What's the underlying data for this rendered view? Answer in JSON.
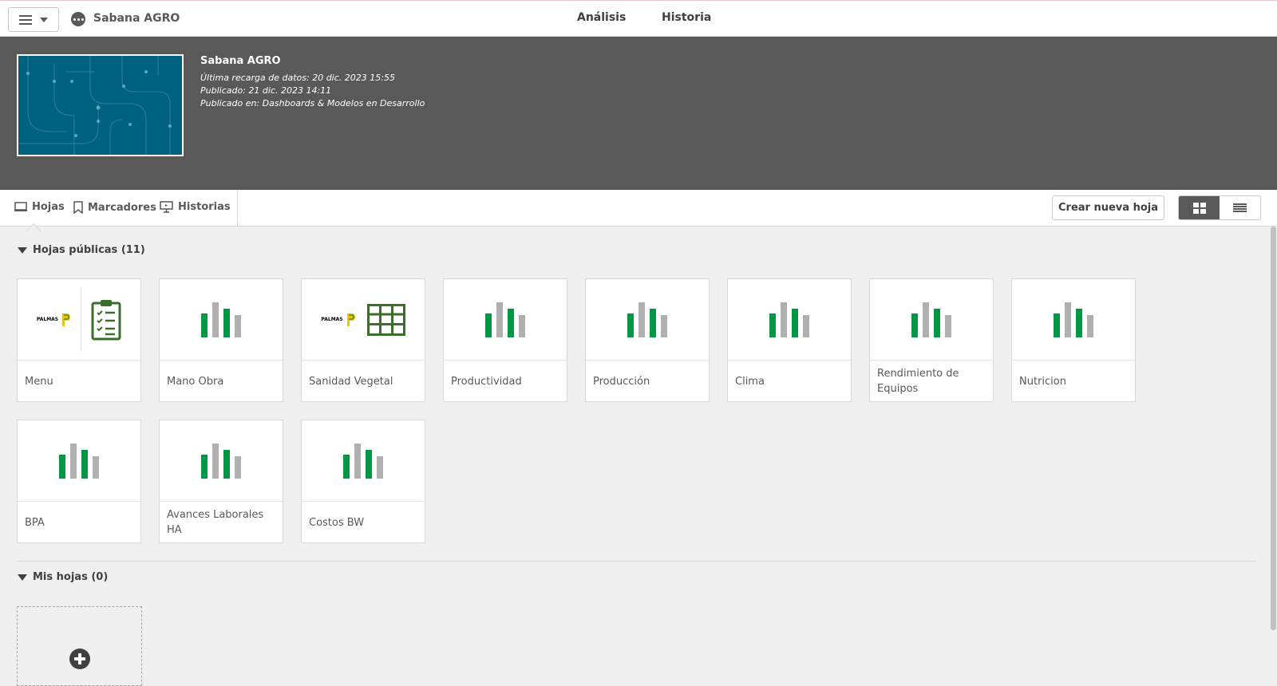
{
  "topbar": {
    "app_name": "Sabana AGRO",
    "nav": [
      "Análisis",
      "Historia"
    ]
  },
  "hero": {
    "title": "Sabana AGRO",
    "last_reload": "Última recarga de datos: 20 dic. 2023 15:55",
    "published": "Publicado: 21 dic. 2023 14:11",
    "published_in": "Publicado en: Dashboards & Modelos en Desarrollo"
  },
  "tabs": {
    "sheets": "Hojas",
    "bookmarks": "Marcadores",
    "stories": "Historias"
  },
  "toolbar": {
    "create_sheet": "Crear nueva hoja"
  },
  "public_sheets": {
    "heading": "Hojas públicas (11)",
    "items": [
      {
        "title": "Menu",
        "thumb": "palmas-clipboard"
      },
      {
        "title": "Mano Obra",
        "thumb": "bar-chart"
      },
      {
        "title": "Sanidad Vegetal",
        "thumb": "palmas-table"
      },
      {
        "title": "Productividad",
        "thumb": "bar-chart"
      },
      {
        "title": "Producción",
        "thumb": "bar-chart"
      },
      {
        "title": "Clima",
        "thumb": "bar-chart"
      },
      {
        "title": "Rendimiento de Equipos",
        "thumb": "bar-chart"
      },
      {
        "title": "Nutricion",
        "thumb": "bar-chart"
      },
      {
        "title": "BPA",
        "thumb": "bar-chart"
      },
      {
        "title": "Avances Laborales HA",
        "thumb": "bar-chart"
      },
      {
        "title": "Costos BW",
        "thumb": "bar-chart"
      }
    ]
  },
  "my_sheets": {
    "heading": "Mis hojas (0)"
  },
  "logo_text": "PALMAS",
  "colors": {
    "accent_green": "#009845",
    "hero_bg": "#595959",
    "thumb_bg": "#00617f",
    "icon_dark_green": "#3b6e2a"
  }
}
